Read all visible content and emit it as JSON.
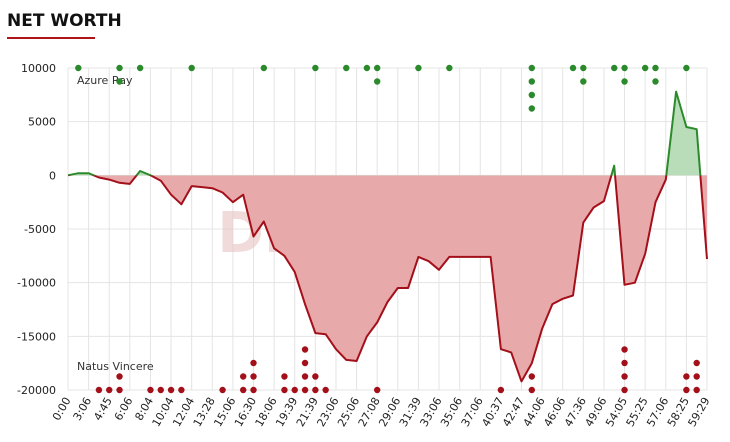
{
  "chart_data": {
    "type": "line",
    "title": "NET WORTH",
    "watermark": "DLTV.ORG",
    "categories": [
      "0:00",
      null,
      "3:06",
      null,
      "4:45",
      null,
      "6:06",
      null,
      "8:04",
      null,
      "10:04",
      null,
      "12:04",
      null,
      "13:28",
      null,
      "15:06",
      null,
      "16:30",
      null,
      "18:06",
      null,
      "19:39",
      null,
      "21:39",
      null,
      "23:06",
      null,
      "25:06",
      null,
      "27:08",
      null,
      "29:06",
      null,
      "31:39",
      null,
      "33:06",
      null,
      "35:06",
      null,
      "37:06",
      null,
      "40:37",
      null,
      "42:47",
      null,
      "44:06",
      null,
      "46:06",
      null,
      "47:36",
      null,
      "49:06",
      null,
      "54:05",
      null,
      "55:25",
      null,
      "57:06",
      null,
      "58:25",
      null,
      "59:29"
    ],
    "values": [
      0,
      200,
      200,
      -200,
      -400,
      -700,
      -800,
      400,
      0,
      -500,
      -1800,
      -2700,
      -1000,
      -1100,
      -1200,
      -1600,
      -2500,
      -1800,
      -5700,
      -4300,
      -6800,
      -7500,
      -9000,
      -12000,
      -14700,
      -14800,
      -16200,
      -17200,
      -17300,
      -15000,
      -13700,
      -11800,
      -10500,
      -10500,
      -7600,
      -8000,
      -8800,
      -7600,
      -7600,
      -7600,
      -7600,
      -7600,
      -16200,
      -16500,
      -19200,
      -17500,
      -14300,
      -12000,
      -11500,
      -11200,
      -4400,
      -3000,
      -2400,
      900,
      -10200,
      -10000,
      -7300,
      -2500,
      -400,
      7800,
      4500,
      4300,
      -7800
    ],
    "teams": [
      {
        "name": "Azure Ray",
        "color": "#2b8a2b",
        "fill": "#b9dcb9",
        "events": [
          0,
          1,
          0,
          0,
          0,
          2,
          0,
          1,
          0,
          0,
          0,
          0,
          1,
          0,
          0,
          0,
          0,
          0,
          0,
          1,
          0,
          0,
          0,
          0,
          1,
          0,
          0,
          1,
          0,
          1,
          2,
          0,
          0,
          0,
          1,
          0,
          0,
          1,
          0,
          0,
          0,
          0,
          0,
          0,
          0,
          4,
          0,
          0,
          0,
          1,
          2,
          0,
          0,
          1,
          2,
          0,
          1,
          2,
          0,
          0,
          1,
          0,
          0
        ]
      },
      {
        "name": "Natus Vincere",
        "color": "#a3101a",
        "fill": "#e8a9aa",
        "events": [
          0,
          0,
          0,
          1,
          1,
          2,
          0,
          0,
          1,
          1,
          1,
          1,
          0,
          0,
          0,
          1,
          0,
          2,
          3,
          0,
          0,
          2,
          1,
          4,
          2,
          1,
          0,
          0,
          0,
          0,
          1,
          0,
          0,
          0,
          0,
          0,
          0,
          0,
          0,
          0,
          0,
          0,
          1,
          0,
          0,
          2,
          0,
          0,
          0,
          0,
          0,
          0,
          0,
          0,
          4,
          0,
          0,
          0,
          0,
          0,
          2,
          3,
          0
        ]
      }
    ],
    "ylim": [
      -20000,
      10000
    ],
    "yticks": [
      10000,
      5000,
      0,
      -5000,
      -10000,
      -15000,
      -20000
    ],
    "grid": true
  }
}
